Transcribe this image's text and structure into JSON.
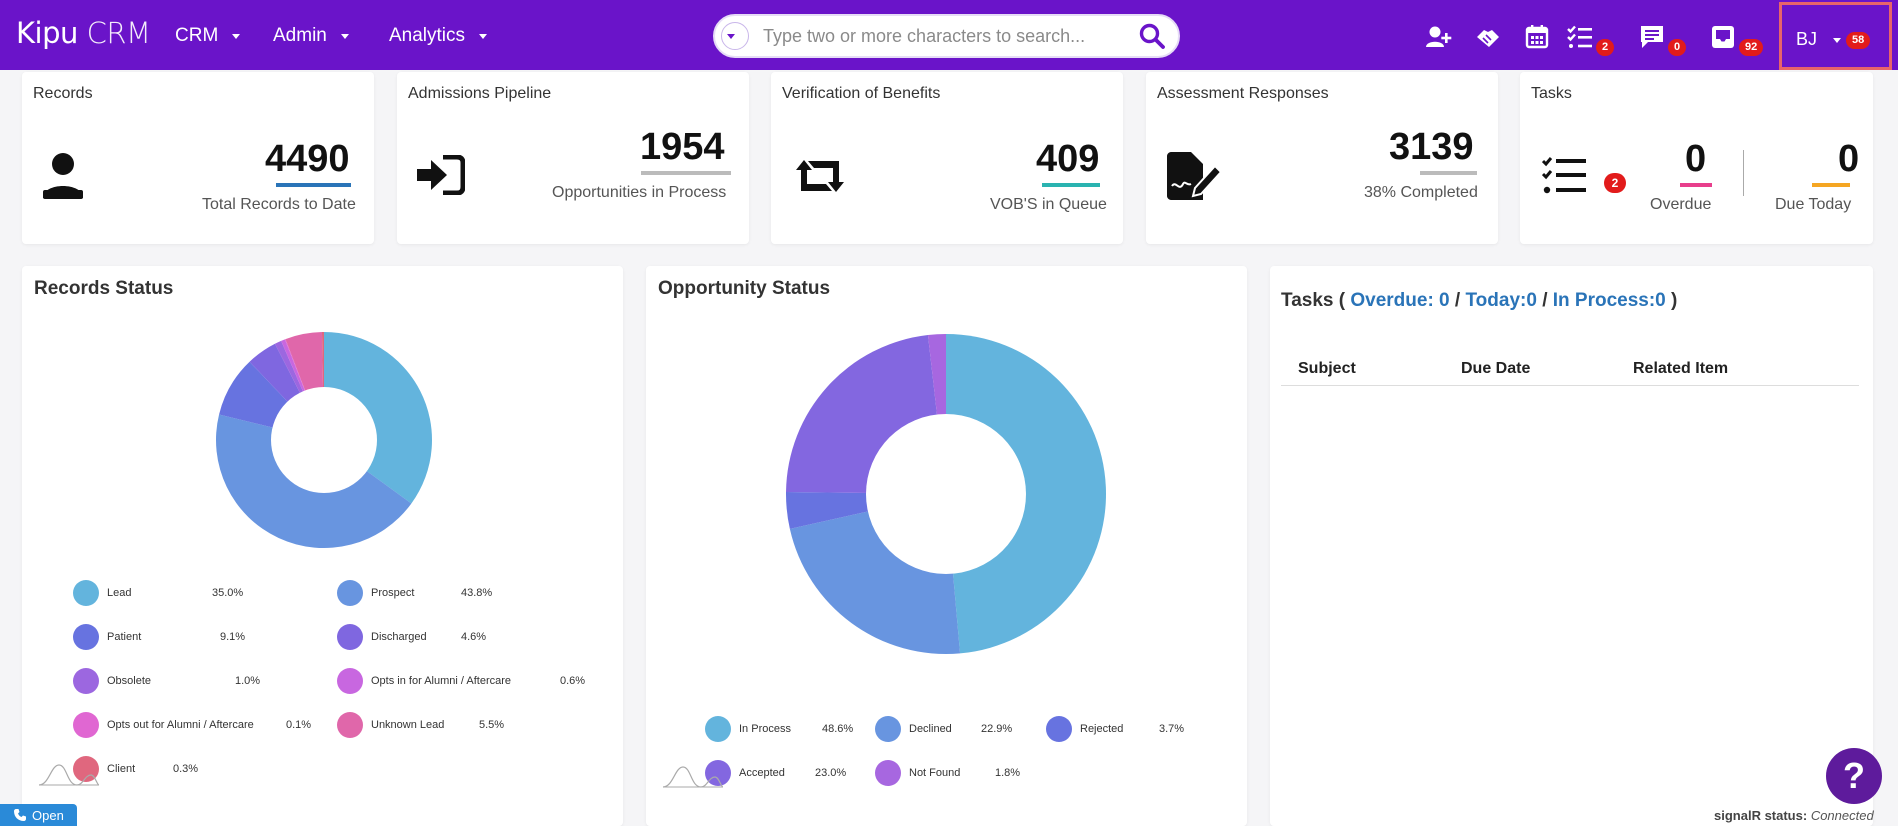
{
  "app": {
    "logo_bold": "Kipu",
    "logo_light": " CRM",
    "menus": [
      "CRM",
      "Admin",
      "Analytics"
    ],
    "search_placeholder": "Type two or more characters to search...",
    "badges": {
      "tasks": "2",
      "messages": "0",
      "inbox": "92",
      "user": "58"
    },
    "user_initials": "BJ",
    "icons": [
      "add-user-icon",
      "handshake-icon",
      "calendar-icon",
      "task-list-icon",
      "message-icon",
      "inbox-icon"
    ]
  },
  "cards": {
    "records": {
      "title": "Records",
      "value": "4490",
      "sub": "Total Records to Date",
      "accent": "#2a74b8"
    },
    "pipeline": {
      "title": "Admissions Pipeline",
      "value": "1954",
      "sub": "Opportunities in Process",
      "accent": "#bbbbbb"
    },
    "vob": {
      "title": "Verification of Benefits",
      "value": "409",
      "sub": "VOB'S in Queue",
      "accent": "#2ab3b0"
    },
    "assessment": {
      "title": "Assessment Responses",
      "value": "3139",
      "sub": "38% Completed",
      "accent": "#bbbbbb"
    },
    "tasks": {
      "title": "Tasks",
      "badge": "2",
      "overdue": "0",
      "overdue_label": "Overdue",
      "today": "0",
      "today_label": "Due Today",
      "overdue_accent": "#e83e8c",
      "today_accent": "#f5a623"
    }
  },
  "records_status": {
    "title": "Records Status",
    "legend": [
      {
        "name": "Lead",
        "pct": "35.0%",
        "color": "#63b4dd"
      },
      {
        "name": "Prospect",
        "pct": "43.8%",
        "color": "#6895e0"
      },
      {
        "name": "Patient",
        "pct": "9.1%",
        "color": "#6773e0"
      },
      {
        "name": "Discharged",
        "pct": "4.6%",
        "color": "#7f67e0"
      },
      {
        "name": "Obsolete",
        "pct": "1.0%",
        "color": "#9c67e0"
      },
      {
        "name": "Opts in for Alumni / Aftercare",
        "pct": "0.6%",
        "color": "#c867e0"
      },
      {
        "name": "Opts out for Alumni / Aftercare",
        "pct": "0.1%",
        "color": "#e067d2"
      },
      {
        "name": "Unknown Lead",
        "pct": "5.5%",
        "color": "#e067aa"
      },
      {
        "name": "Client",
        "pct": "0.3%",
        "color": "#e0677e"
      }
    ]
  },
  "opportunity_status": {
    "title": "Opportunity Status",
    "legend": [
      {
        "name": "In Process",
        "pct": "48.6%",
        "color": "#63b4dd"
      },
      {
        "name": "Declined",
        "pct": "22.9%",
        "color": "#6895e0"
      },
      {
        "name": "Rejected",
        "pct": "3.7%",
        "color": "#6773e0"
      },
      {
        "name": "Accepted",
        "pct": "23.0%",
        "color": "#8367e0"
      },
      {
        "name": "Not Found",
        "pct": "1.8%",
        "color": "#a767e0"
      }
    ]
  },
  "tasks_panel": {
    "prefix": "Tasks (",
    "overdue": "Overdue: 0",
    "sep1": "/",
    "today": "Today:0",
    "sep2": "/",
    "in_process": "In Process:0",
    "suffix": ")",
    "columns": [
      "Subject",
      "Due Date",
      "Related Item"
    ]
  },
  "footer": {
    "open_label": "Open",
    "help_label": "?",
    "signalr_label": "signalR status:",
    "signalr_value": "Connected"
  }
}
